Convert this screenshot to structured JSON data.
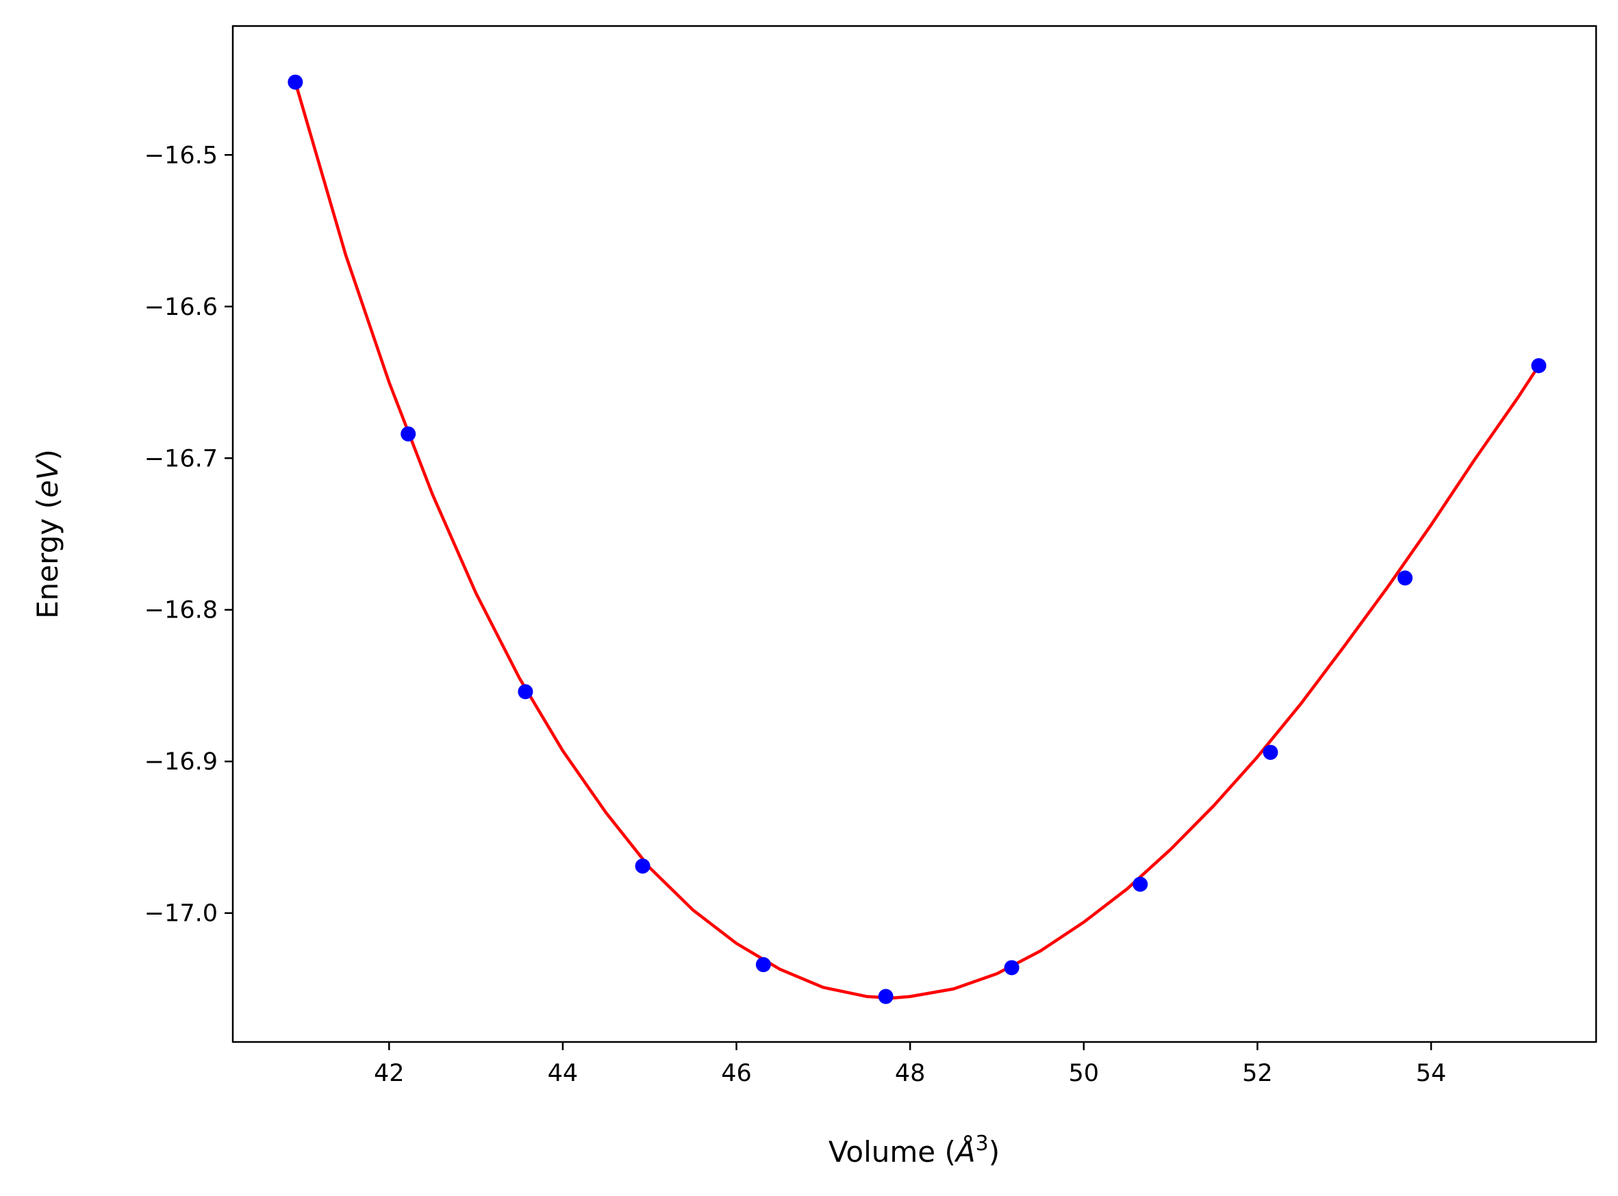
{
  "chart_data": {
    "type": "scatter",
    "title": "",
    "xlabel_text": "Volume (",
    "xlabel_sym": "Å",
    "xlabel_sup": "3",
    "xlabel_close": ")",
    "ylabel_text": "Energy (",
    "ylabel_sym": "eV",
    "ylabel_close": ")",
    "xlim": [
      40.2,
      55.9
    ],
    "ylim": [
      -17.085,
      -16.415
    ],
    "xticks": [
      42,
      44,
      46,
      48,
      50,
      52,
      54
    ],
    "yticks": [
      -16.5,
      -16.6,
      -16.7,
      -16.8,
      -16.9,
      -17.0
    ],
    "ytick_labels": [
      "−16.5",
      "−16.6",
      "−16.7",
      "−16.8",
      "−16.9",
      "−17.0"
    ],
    "grid": false,
    "series": [
      {
        "kind": "points",
        "color": "#0000ff",
        "x": [
          40.92,
          42.22,
          43.57,
          44.92,
          46.31,
          47.72,
          49.17,
          50.65,
          52.15,
          53.7,
          55.24
        ],
        "y": [
          -16.452,
          -16.684,
          -16.854,
          -16.969,
          -17.034,
          -17.055,
          -17.036,
          -16.981,
          -16.894,
          -16.779,
          -16.639
        ]
      },
      {
        "kind": "fit-curve",
        "color": "#ff0000",
        "x": [
          40.92,
          41.5,
          42.0,
          42.5,
          43.0,
          43.5,
          44.0,
          44.5,
          45.0,
          45.5,
          46.0,
          46.5,
          47.0,
          47.5,
          47.8,
          48.0,
          48.5,
          49.0,
          49.5,
          50.0,
          50.5,
          51.0,
          51.5,
          52.0,
          52.5,
          53.0,
          53.5,
          54.0,
          54.5,
          55.0,
          55.24
        ],
        "y": [
          -16.452,
          -16.566,
          -16.65,
          -16.724,
          -16.789,
          -16.845,
          -16.893,
          -16.934,
          -16.97,
          -16.998,
          -17.02,
          -17.037,
          -17.049,
          -17.055,
          -17.056,
          -17.055,
          -17.05,
          -17.04,
          -17.025,
          -17.006,
          -16.984,
          -16.958,
          -16.929,
          -16.897,
          -16.862,
          -16.824,
          -16.785,
          -16.744,
          -16.701,
          -16.66,
          -16.639
        ]
      }
    ]
  }
}
